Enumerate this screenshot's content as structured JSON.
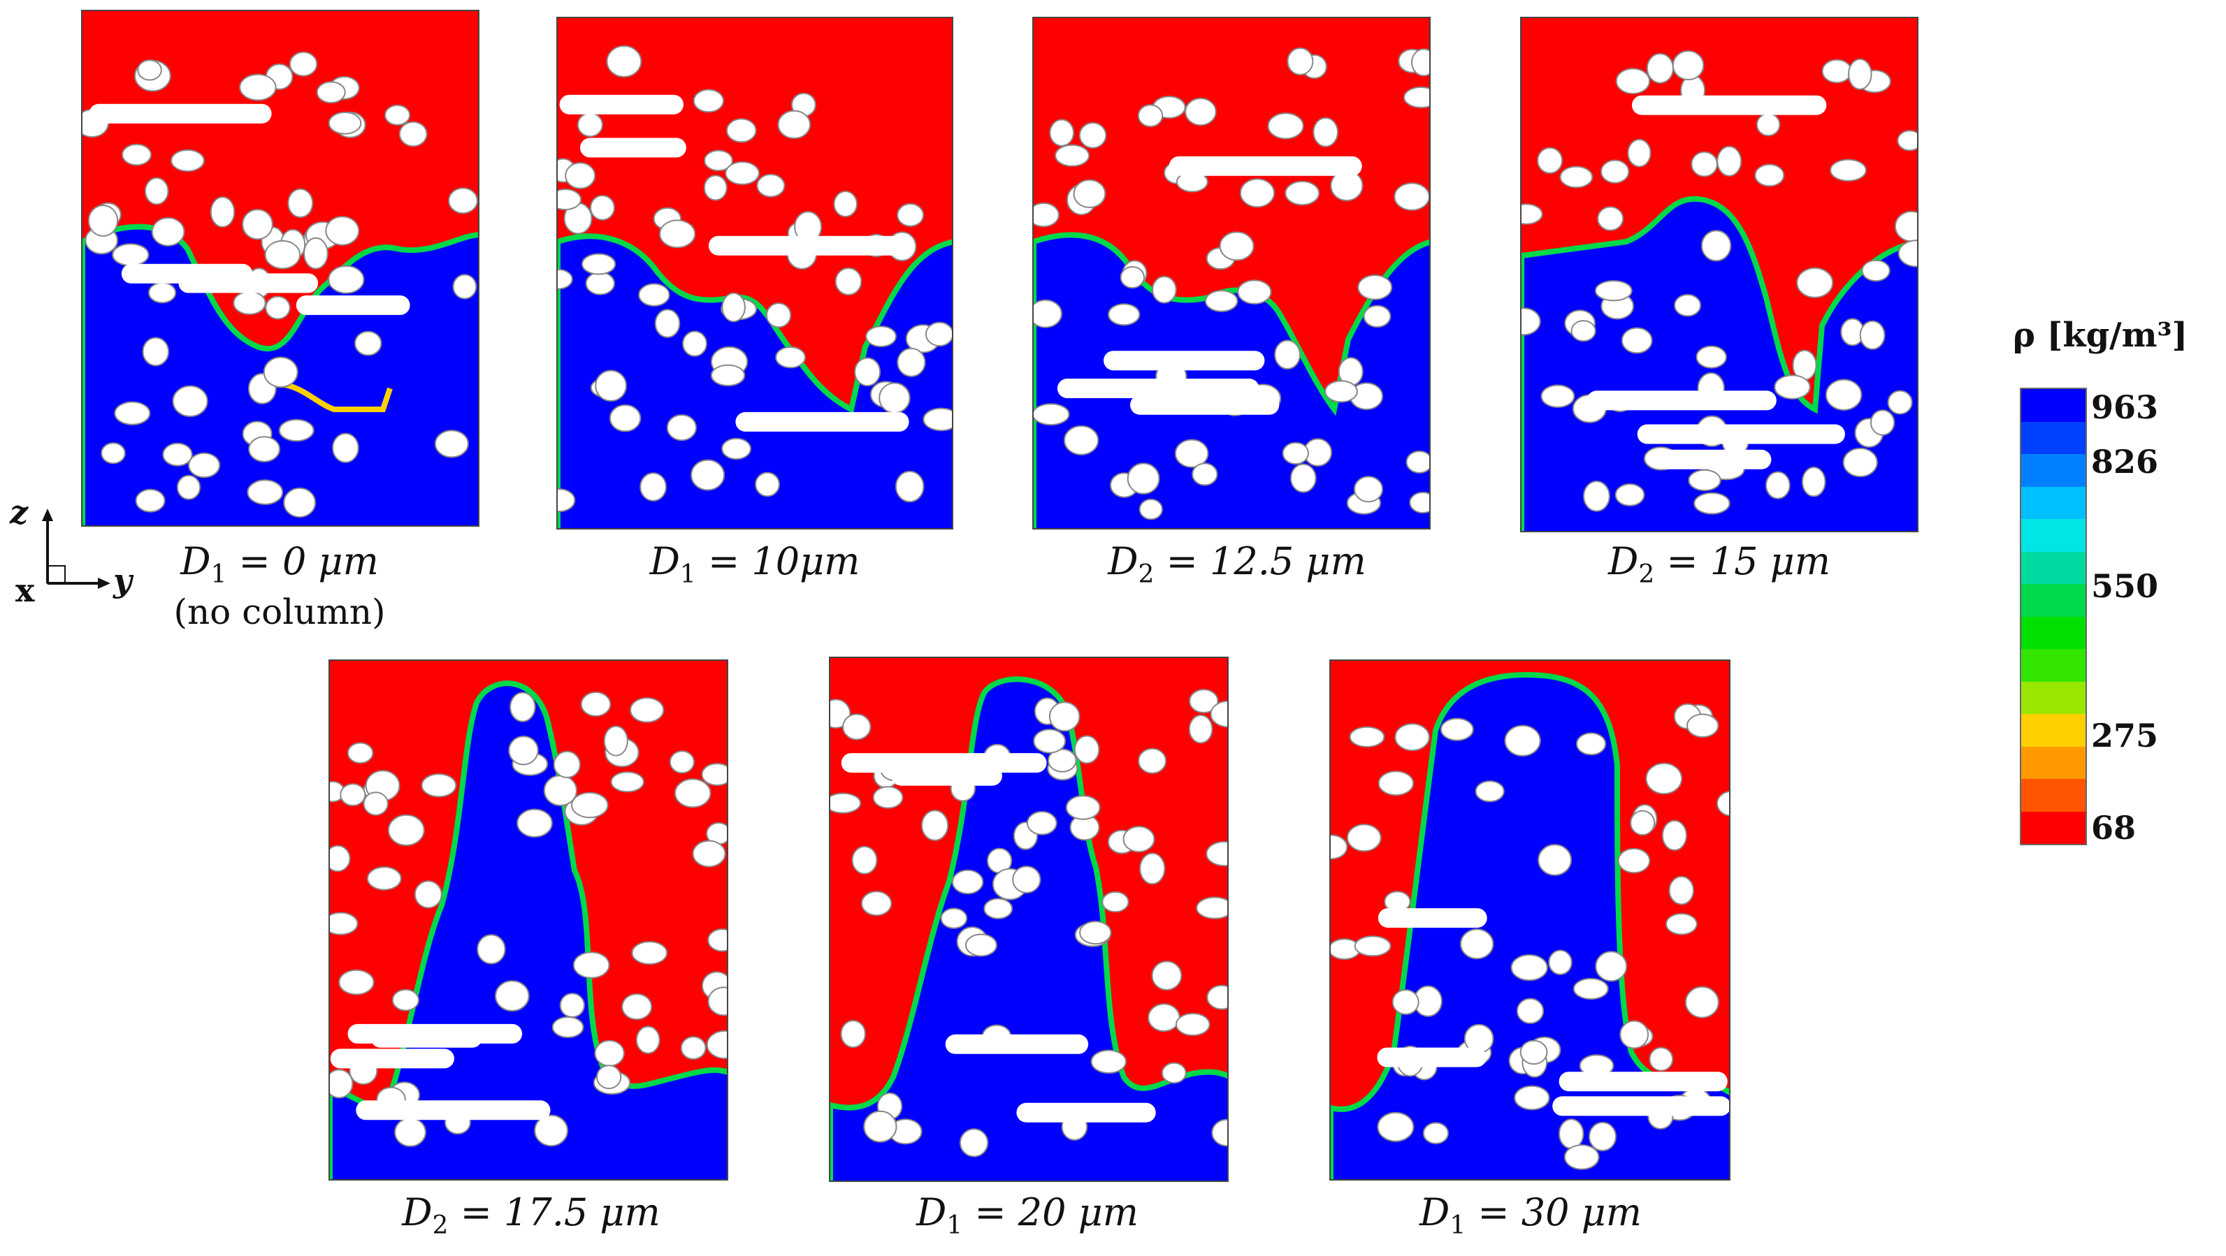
{
  "panels": [
    {
      "caption_var": "D",
      "caption_sub": "1",
      "caption_rest": " = 0 μm",
      "caption_line2": "(no column)"
    },
    {
      "caption_var": "D",
      "caption_sub": "1",
      "caption_rest": " = 10μm",
      "caption_line2": ""
    },
    {
      "caption_var": "D",
      "caption_sub": "2",
      "caption_rest": " = 12.5 μm",
      "caption_line2": ""
    },
    {
      "caption_var": "D",
      "caption_sub": "2",
      "caption_rest": " = 15 μm",
      "caption_line2": ""
    },
    {
      "caption_var": "D",
      "caption_sub": "2",
      "caption_rest": " = 17.5 μm",
      "caption_line2": ""
    },
    {
      "caption_var": "D",
      "caption_sub": "1",
      "caption_rest": " = 20 μm",
      "caption_line2": ""
    },
    {
      "caption_var": "D",
      "caption_sub": "1",
      "caption_rest": " = 30 μm",
      "caption_line2": ""
    }
  ],
  "axes": {
    "z": "z",
    "x": "x",
    "y": "y"
  },
  "colorbar": {
    "title": "ρ [kg/m³]",
    "ticks": [
      "963",
      "826",
      "550",
      "275",
      "68"
    ],
    "colors": [
      "#0000ff",
      "#0040ff",
      "#0080ff",
      "#00bfff",
      "#00e5e5",
      "#00d9a0",
      "#00d94a",
      "#00e000",
      "#33e600",
      "#99e600",
      "#ffd000",
      "#ff9900",
      "#ff5500",
      "#ff0000"
    ]
  },
  "colors": {
    "liquid": "#0000ff",
    "gas": "#ff0000",
    "solid": "#ffffff"
  }
}
